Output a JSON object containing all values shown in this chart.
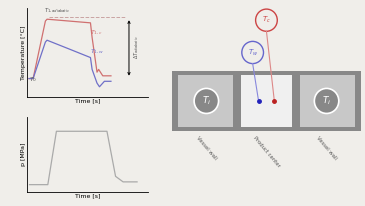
{
  "bg_color": "#f0eeea",
  "left_top": {
    "ylabel": "Temperature [°C]",
    "xlabel": "Time [s]",
    "T1c_color": "#d07070",
    "T1w_color": "#7070c8",
    "T1ad_color": "#c09090",
    "arrow_color": "#333333",
    "label_color": "#555555"
  },
  "left_bot": {
    "xlabel": "Time [s]",
    "ylabel": "p [MPa]",
    "line_color": "#aaaaaa"
  },
  "right": {
    "vessel_color": "#888888",
    "left_prod_color": "#c8c8c8",
    "center_color": "#f0f0f0",
    "right_prod_color": "#c8c8c8",
    "circle_fill": "#888888",
    "circle_edge": "#ffffff",
    "dot_blue": "#2222bb",
    "dot_red": "#bb2222",
    "line_blue": "#8888dd",
    "line_red": "#dd8888",
    "circle_tw_edge": "#6666cc",
    "circle_tc_edge": "#cc4444",
    "label_color": "#555555"
  }
}
